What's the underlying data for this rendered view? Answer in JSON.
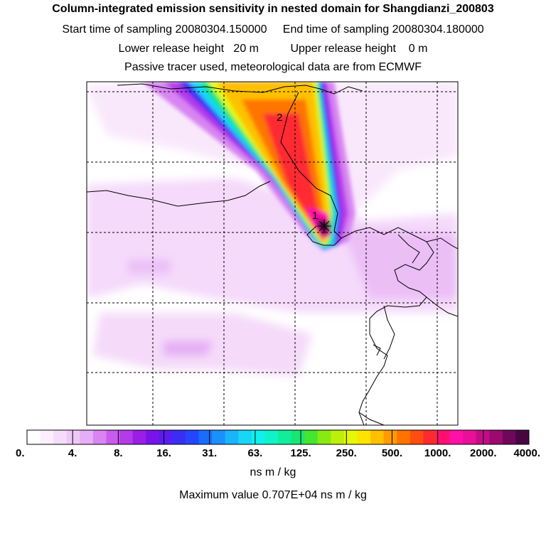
{
  "header": {
    "title": "Column-integrated emission sensitivity in nested domain for Shangdianzi_200803",
    "line2": "Start time of sampling 20080304.150000     End time of sampling 20080304.180000",
    "line3": "Lower release height   20 m          Upper release height    0 m",
    "line4": "Passive tracer used, meteorological data are from ECMWF"
  },
  "chart_data": {
    "type": "heatmap",
    "title": "Column-integrated emission sensitivity in nested domain for Shangdianzi_200803",
    "markers": [
      {
        "label": "1",
        "kind": "receptor"
      },
      {
        "label": "2",
        "kind": "trajectory-point"
      }
    ],
    "grid": true,
    "colorbar": {
      "tick_labels": [
        "0.",
        "4.",
        "8.",
        "16.",
        "31.",
        "63.",
        "125.",
        "250.",
        "500.",
        "1000.",
        "2000.",
        "4000."
      ],
      "tick_values": [
        0,
        4,
        8,
        16,
        31,
        63,
        125,
        250,
        500,
        1000,
        2000,
        4000
      ],
      "units": "ns m / kg",
      "colors": [
        "#ffffff",
        "#fbeefd",
        "#f5dcfb",
        "#efc8f8",
        "#e6aef5",
        "#d884f2",
        "#c95cef",
        "#b43aea",
        "#9a1ee6",
        "#7a12ea",
        "#5a1cf0",
        "#3a2ef5",
        "#2446fa",
        "#1a6cfb",
        "#1a90fb",
        "#1ab4fb",
        "#18d6f8",
        "#10f0ee",
        "#10f2c8",
        "#10ee9c",
        "#18e672",
        "#44e630",
        "#88ea10",
        "#bcf00a",
        "#e4f808",
        "#ffe400",
        "#ffc000",
        "#ff9a00",
        "#ff7400",
        "#ff4e10",
        "#ff2a30",
        "#ff1070",
        "#ff10a8",
        "#e81098",
        "#c40c86",
        "#9c0a70",
        "#70085a",
        "#480640"
      ]
    },
    "max_value_text": "Maximum value  0.707E+04 ns m / kg"
  },
  "units_label": "ns m / kg",
  "max_label": "Maximum value  0.707E+04 ns m / kg"
}
